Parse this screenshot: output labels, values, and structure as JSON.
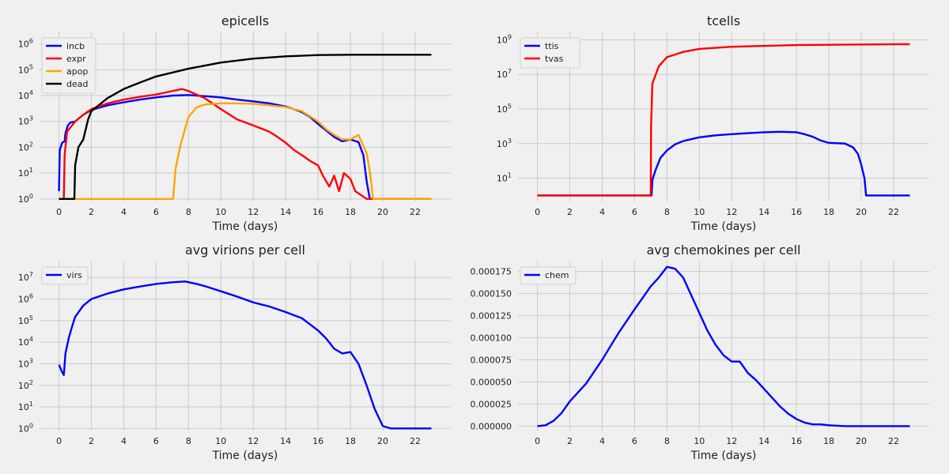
{
  "colors": {
    "background": "#f0f0f0",
    "grid": "#cbcbcb",
    "blue": "#0000ff",
    "red": "#ff0000",
    "orange": "#ffa500",
    "black": "#000000"
  },
  "chart_data": [
    {
      "id": "epicells",
      "type": "line",
      "title": "epicells",
      "xlabel": "Time (days)",
      "ylabel": "",
      "yscale": "log",
      "xlim": [
        -1.2,
        24.2
      ],
      "ylim": [
        0.8,
        3000000
      ],
      "grid": true,
      "legend": "top-left",
      "xticks": [
        0,
        2,
        4,
        6,
        8,
        10,
        12,
        14,
        16,
        18,
        20,
        22
      ],
      "yticks": [
        {
          "v": 1,
          "label": "10^0"
        },
        {
          "v": 10,
          "label": "10^1"
        },
        {
          "v": 100,
          "label": "10^2"
        },
        {
          "v": 1000,
          "label": "10^3"
        },
        {
          "v": 10000,
          "label": "10^4"
        },
        {
          "v": 100000,
          "label": "10^5"
        },
        {
          "v": 1000000,
          "label": "10^6"
        }
      ],
      "series": [
        {
          "name": "incb",
          "color": "#0000ff",
          "points": [
            [
              0,
              2
            ],
            [
              0.05,
              80
            ],
            [
              0.2,
              150
            ],
            [
              0.35,
              170
            ],
            [
              0.4,
              350
            ],
            [
              0.55,
              700
            ],
            [
              0.7,
              900
            ],
            [
              1,
              1000
            ],
            [
              1.5,
              1800
            ],
            [
              2,
              2800
            ],
            [
              3,
              4200
            ],
            [
              4,
              5500
            ],
            [
              5,
              7000
            ],
            [
              6,
              8500
            ],
            [
              7,
              10000
            ],
            [
              8,
              10500
            ],
            [
              9,
              9500
            ],
            [
              10,
              8500
            ],
            [
              11,
              7000
            ],
            [
              12,
              6000
            ],
            [
              13,
              5000
            ],
            [
              14,
              3800
            ],
            [
              14.5,
              3000
            ],
            [
              15,
              2300
            ],
            [
              15.5,
              1500
            ],
            [
              16,
              800
            ],
            [
              16.5,
              450
            ],
            [
              17,
              250
            ],
            [
              17.5,
              170
            ],
            [
              18,
              200
            ],
            [
              18.5,
              160
            ],
            [
              18.8,
              50
            ],
            [
              19,
              5
            ],
            [
              19.2,
              1
            ],
            [
              23,
              1
            ]
          ]
        },
        {
          "name": "expr",
          "color": "#ff0000",
          "points": [
            [
              0.3,
              1
            ],
            [
              0.35,
              50
            ],
            [
              0.5,
              400
            ],
            [
              1,
              1000
            ],
            [
              1.5,
              1800
            ],
            [
              2,
              3000
            ],
            [
              3,
              5000
            ],
            [
              4,
              7000
            ],
            [
              5,
              9000
            ],
            [
              6,
              11000
            ],
            [
              7,
              15000
            ],
            [
              7.6,
              18000
            ],
            [
              8,
              15000
            ],
            [
              9,
              8000
            ],
            [
              10,
              3000
            ],
            [
              11,
              1200
            ],
            [
              12,
              700
            ],
            [
              13,
              400
            ],
            [
              13.5,
              250
            ],
            [
              14,
              150
            ],
            [
              14.5,
              80
            ],
            [
              15,
              50
            ],
            [
              15.5,
              30
            ],
            [
              16,
              20
            ],
            [
              16.3,
              8
            ],
            [
              16.7,
              3
            ],
            [
              17,
              8
            ],
            [
              17.3,
              2
            ],
            [
              17.6,
              10
            ],
            [
              18,
              6
            ],
            [
              18.3,
              2
            ],
            [
              18.6,
              1.5
            ],
            [
              19,
              1
            ],
            [
              23,
              1
            ]
          ]
        },
        {
          "name": "apop",
          "color": "#ffa500",
          "points": [
            [
              0,
              1
            ],
            [
              7.05,
              1
            ],
            [
              7.2,
              15
            ],
            [
              7.5,
              120
            ],
            [
              8,
              1500
            ],
            [
              8.5,
              3500
            ],
            [
              9,
              4500
            ],
            [
              10,
              5000
            ],
            [
              11,
              5000
            ],
            [
              12,
              4800
            ],
            [
              13,
              4200
            ],
            [
              14,
              3600
            ],
            [
              15,
              2500
            ],
            [
              16,
              1000
            ],
            [
              16.5,
              500
            ],
            [
              17,
              300
            ],
            [
              17.5,
              200
            ],
            [
              18,
              200
            ],
            [
              18.5,
              300
            ],
            [
              19,
              60
            ],
            [
              19.2,
              12
            ],
            [
              19.4,
              1
            ],
            [
              23,
              1
            ]
          ]
        },
        {
          "name": "dead",
          "color": "#000000",
          "points": [
            [
              0,
              1
            ],
            [
              0.95,
              1
            ],
            [
              1,
              20
            ],
            [
              1.2,
              100
            ],
            [
              1.5,
              200
            ],
            [
              1.8,
              1200
            ],
            [
              2,
              2500
            ],
            [
              3,
              8000
            ],
            [
              4,
              18000
            ],
            [
              5,
              32000
            ],
            [
              6,
              55000
            ],
            [
              8,
              110000
            ],
            [
              10,
              190000
            ],
            [
              12,
              270000
            ],
            [
              14,
              330000
            ],
            [
              16,
              370000
            ],
            [
              18,
              380000
            ],
            [
              20,
              380000
            ],
            [
              23,
              380000
            ]
          ]
        }
      ]
    },
    {
      "id": "tcells",
      "type": "line",
      "title": "tcells",
      "xlabel": "Time (days)",
      "ylabel": "",
      "yscale": "log",
      "xlim": [
        -1.2,
        24.2
      ],
      "ylim": [
        0.45,
        3000000000
      ],
      "grid": true,
      "legend": "top-left",
      "xticks": [
        0,
        2,
        4,
        6,
        8,
        10,
        12,
        14,
        16,
        18,
        20,
        22
      ],
      "yticks": [
        {
          "v": 10,
          "label": "10^1"
        },
        {
          "v": 1000,
          "label": "10^3"
        },
        {
          "v": 100000,
          "label": "10^5"
        },
        {
          "v": 10000000,
          "label": "10^7"
        },
        {
          "v": 1000000000,
          "label": "10^9"
        }
      ],
      "series": [
        {
          "name": "ttis",
          "color": "#0000ff",
          "points": [
            [
              0,
              1
            ],
            [
              7.05,
              1
            ],
            [
              7.1,
              8
            ],
            [
              7.3,
              30
            ],
            [
              7.6,
              150
            ],
            [
              8,
              400
            ],
            [
              8.5,
              900
            ],
            [
              9,
              1400
            ],
            [
              10,
              2300
            ],
            [
              11,
              3000
            ],
            [
              12,
              3500
            ],
            [
              13,
              4000
            ],
            [
              14,
              4500
            ],
            [
              15,
              4800
            ],
            [
              16,
              4500
            ],
            [
              16.5,
              3500
            ],
            [
              17,
              2500
            ],
            [
              17.5,
              1500
            ],
            [
              18,
              1100
            ],
            [
              19,
              1000
            ],
            [
              19.5,
              600
            ],
            [
              19.8,
              250
            ],
            [
              20,
              60
            ],
            [
              20.2,
              10
            ],
            [
              20.3,
              1
            ],
            [
              23,
              1
            ]
          ]
        },
        {
          "name": "tvas",
          "color": "#ff0000",
          "points": [
            [
              0,
              1
            ],
            [
              7,
              1
            ],
            [
              7.02,
              10000
            ],
            [
              7.1,
              3000000
            ],
            [
              7.5,
              30000000
            ],
            [
              8,
              100000000
            ],
            [
              9,
              200000000
            ],
            [
              10,
              300000000
            ],
            [
              12,
              400000000
            ],
            [
              14,
              450000000
            ],
            [
              16,
              500000000
            ],
            [
              18,
              520000000
            ],
            [
              20,
              540000000
            ],
            [
              23,
              560000000
            ]
          ]
        }
      ]
    },
    {
      "id": "virions",
      "type": "line",
      "title": "avg virions per cell",
      "xlabel": "Time (days)",
      "ylabel": "",
      "yscale": "log",
      "xlim": [
        -1.2,
        24.2
      ],
      "ylim": [
        0.8,
        60000000
      ],
      "grid": true,
      "legend": "top-left",
      "xticks": [
        0,
        2,
        4,
        6,
        8,
        10,
        12,
        14,
        16,
        18,
        20,
        22
      ],
      "yticks": [
        {
          "v": 1,
          "label": "10^0"
        },
        {
          "v": 10,
          "label": "10^1"
        },
        {
          "v": 100,
          "label": "10^2"
        },
        {
          "v": 1000,
          "label": "10^3"
        },
        {
          "v": 10000,
          "label": "10^4"
        },
        {
          "v": 100000,
          "label": "10^5"
        },
        {
          "v": 1000000,
          "label": "10^6"
        },
        {
          "v": 10000000,
          "label": "10^7"
        }
      ],
      "series": [
        {
          "name": "virs",
          "color": "#0000ff",
          "points": [
            [
              0,
              900
            ],
            [
              0.2,
              400
            ],
            [
              0.3,
              300
            ],
            [
              0.4,
              3000
            ],
            [
              0.6,
              15000
            ],
            [
              0.8,
              50000
            ],
            [
              1,
              150000
            ],
            [
              1.5,
              500000
            ],
            [
              2,
              1000000
            ],
            [
              3,
              1800000
            ],
            [
              4,
              2800000
            ],
            [
              5,
              3800000
            ],
            [
              6,
              5000000
            ],
            [
              7,
              6000000
            ],
            [
              7.8,
              6500000
            ],
            [
              8.5,
              5000000
            ],
            [
              9,
              4000000
            ],
            [
              10,
              2300000
            ],
            [
              11,
              1300000
            ],
            [
              12,
              700000
            ],
            [
              13,
              450000
            ],
            [
              14,
              250000
            ],
            [
              15,
              130000
            ],
            [
              16,
              35000
            ],
            [
              16.5,
              15000
            ],
            [
              17,
              5000
            ],
            [
              17.5,
              3000
            ],
            [
              18,
              3500
            ],
            [
              18.5,
              1000
            ],
            [
              19,
              100
            ],
            [
              19.5,
              8
            ],
            [
              20,
              1.3
            ],
            [
              20.5,
              1
            ],
            [
              23,
              1
            ]
          ]
        }
      ]
    },
    {
      "id": "chemokines",
      "type": "line",
      "title": "avg chemokines per cell",
      "xlabel": "Time (days)",
      "ylabel": "",
      "yscale": "linear",
      "xlim": [
        -1.2,
        24.2
      ],
      "ylim": [
        -5e-06,
        0.000187
      ],
      "grid": true,
      "legend": "top-left",
      "xticks": [
        0,
        2,
        4,
        6,
        8,
        10,
        12,
        14,
        16,
        18,
        20,
        22
      ],
      "yticks": [
        {
          "v": 0,
          "label": "0.000000"
        },
        {
          "v": 2.5e-05,
          "label": "0.000025"
        },
        {
          "v": 5e-05,
          "label": "0.000050"
        },
        {
          "v": 7.5e-05,
          "label": "0.000075"
        },
        {
          "v": 0.0001,
          "label": "0.000100"
        },
        {
          "v": 0.000125,
          "label": "0.000125"
        },
        {
          "v": 0.00015,
          "label": "0.000150"
        },
        {
          "v": 0.000175,
          "label": "0.000175"
        }
      ],
      "series": [
        {
          "name": "chem",
          "color": "#0000ff",
          "points": [
            [
              0,
              0
            ],
            [
              0.5,
              1e-06
            ],
            [
              1,
              6e-06
            ],
            [
              1.5,
              1.5e-05
            ],
            [
              2,
              2.8e-05
            ],
            [
              3,
              4.8e-05
            ],
            [
              4,
              7.5e-05
            ],
            [
              5,
              0.000105
            ],
            [
              6,
              0.000132
            ],
            [
              7,
              0.000158
            ],
            [
              7.5,
              0.000168
            ],
            [
              8,
              0.00018
            ],
            [
              8.5,
              0.000178
            ],
            [
              9,
              0.000168
            ],
            [
              9.5,
              0.000148
            ],
            [
              10,
              0.000128
            ],
            [
              10.5,
              0.000108
            ],
            [
              11,
              9.2e-05
            ],
            [
              11.5,
              8e-05
            ],
            [
              12,
              7.3e-05
            ],
            [
              12.5,
              7.3e-05
            ],
            [
              13,
              6e-05
            ],
            [
              13.5,
              5.2e-05
            ],
            [
              14,
              4.2e-05
            ],
            [
              14.5,
              3.2e-05
            ],
            [
              15,
              2.2e-05
            ],
            [
              15.5,
              1.4e-05
            ],
            [
              16,
              8e-06
            ],
            [
              16.5,
              4e-06
            ],
            [
              17,
              2e-06
            ],
            [
              17.5,
              2e-06
            ],
            [
              18,
              1e-06
            ],
            [
              19,
              0
            ],
            [
              23,
              0
            ]
          ]
        }
      ]
    }
  ]
}
